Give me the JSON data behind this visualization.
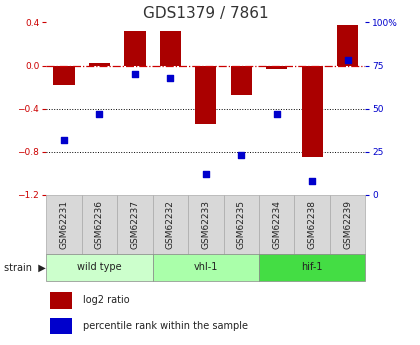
{
  "title": "GDS1379 / 7861",
  "samples": [
    "GSM62231",
    "GSM62236",
    "GSM62237",
    "GSM62232",
    "GSM62233",
    "GSM62235",
    "GSM62234",
    "GSM62238",
    "GSM62239"
  ],
  "log2_ratio": [
    -0.18,
    0.02,
    0.32,
    0.32,
    -0.54,
    -0.27,
    -0.03,
    -0.85,
    0.38
  ],
  "percentile_rank": [
    32,
    47,
    70,
    68,
    12,
    23,
    47,
    8,
    78
  ],
  "groups": [
    {
      "label": "wild type",
      "start": 0,
      "end": 3,
      "color": "#ccffcc"
    },
    {
      "label": "vhl-1",
      "start": 3,
      "end": 6,
      "color": "#aaffaa"
    },
    {
      "label": "hif-1",
      "start": 6,
      "end": 9,
      "color": "#44dd44"
    }
  ],
  "ylim_left": [
    -1.2,
    0.4
  ],
  "ylim_right": [
    0,
    100
  ],
  "bar_color": "#aa0000",
  "dot_color": "#0000cc",
  "zeroline_color": "#cc0000",
  "grid_color": "#000000",
  "sample_bg_color": "#d8d8d8",
  "plot_bg": "#ffffff",
  "title_fontsize": 11,
  "label_fontsize": 6.5,
  "tick_fontsize": 6.5,
  "bar_width": 0.6
}
